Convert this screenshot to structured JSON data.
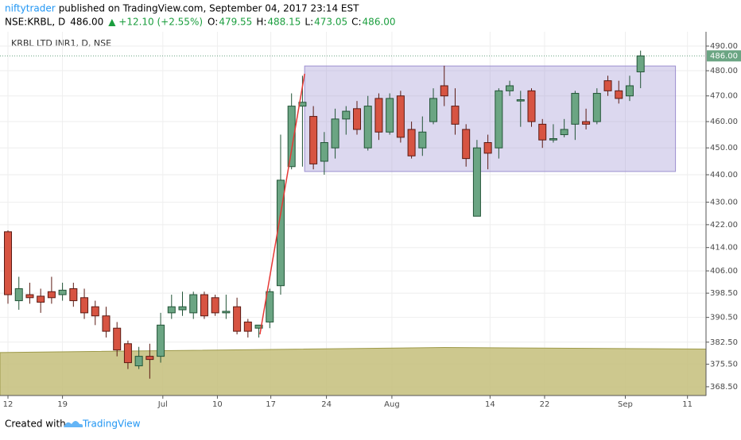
{
  "header": {
    "author": "niftytrader",
    "published": "published on TradingView.com, September 04, 2017 23:14 EST",
    "symbol": "NSE:KRBL, D",
    "last": "486.00",
    "change": "▲ +12.10 (+2.55%)",
    "ohlc": [
      {
        "label": "O:",
        "value": "479.55"
      },
      {
        "label": "H:",
        "value": "488.15"
      },
      {
        "label": "L:",
        "value": "473.05"
      },
      {
        "label": "C:",
        "value": "486.00"
      }
    ]
  },
  "footer": {
    "created": "Created with",
    "brand": "TradingView"
  },
  "chart_data": {
    "type": "candlestick",
    "legend": "KRBL LTD INR1, D, NSE",
    "log_scale": true,
    "grid": true,
    "up_color": "#6ba583",
    "down_color": "#d75442",
    "open": [
      419.5,
      396,
      398,
      397.5,
      399,
      398,
      400,
      397,
      394,
      391,
      387,
      382,
      375,
      378,
      378,
      392,
      393,
      392,
      398,
      397,
      392,
      394,
      389,
      387,
      389,
      401,
      443,
      466,
      462,
      445,
      450,
      461,
      465,
      450,
      469,
      456,
      470,
      457,
      450,
      460,
      474,
      466,
      457,
      425,
      452,
      450,
      472,
      468,
      472,
      459,
      453,
      455,
      459,
      460,
      460,
      476,
      472,
      470,
      479.55
    ],
    "high": [
      420,
      404,
      402,
      400,
      404,
      402,
      402,
      400,
      396,
      394,
      389,
      383,
      381,
      382,
      392,
      398,
      399,
      399,
      399,
      398,
      398,
      397,
      390,
      388,
      400,
      455,
      471,
      478,
      466,
      456,
      465,
      466,
      468,
      470,
      471,
      471,
      472,
      460,
      462,
      473,
      482,
      473,
      459,
      453,
      455,
      473,
      476,
      472,
      473,
      461,
      459,
      461,
      472,
      465,
      473,
      478,
      476,
      478,
      488.15
    ],
    "low": [
      395,
      393,
      395,
      392,
      395,
      396,
      394,
      390,
      388,
      384,
      378,
      374,
      374,
      371,
      376,
      390,
      391,
      390,
      390,
      391,
      390,
      385,
      384,
      384,
      387,
      398,
      442,
      443,
      442,
      440,
      446,
      455,
      455,
      449,
      453,
      455,
      452,
      446,
      447,
      459,
      466,
      455,
      443,
      425,
      442,
      446,
      470,
      458,
      458,
      450,
      452,
      454,
      453,
      457,
      459,
      470,
      467,
      468,
      473.05
    ],
    "close": [
      398,
      400,
      397,
      395.5,
      397,
      399.5,
      396,
      392,
      391,
      386,
      380,
      376,
      378,
      377,
      388,
      394,
      394,
      398,
      391,
      392,
      392.5,
      386,
      386,
      388,
      399,
      438,
      466,
      467.5,
      444,
      452,
      461,
      464,
      457,
      466,
      456,
      469,
      454,
      447,
      456,
      469,
      470,
      459,
      446,
      450,
      448,
      472,
      474,
      468.5,
      460,
      453,
      453.5,
      457,
      471,
      459,
      471,
      472,
      469,
      474,
      486
    ],
    "xlim": [
      -0.73,
      64
    ],
    "xticks": [
      {
        "value": 0,
        "label": "12"
      },
      {
        "value": 5,
        "label": "19"
      },
      {
        "value": 14.2,
        "label": "Jul"
      },
      {
        "value": 19.2,
        "label": "10"
      },
      {
        "value": 24.1,
        "label": "17"
      },
      {
        "value": 29.2,
        "label": "24"
      },
      {
        "value": 35.2,
        "label": "Aug"
      },
      {
        "value": 44.2,
        "label": "14"
      },
      {
        "value": 49.2,
        "label": "22"
      },
      {
        "value": 56.6,
        "label": "Sep"
      },
      {
        "value": 62.3,
        "label": "11"
      }
    ],
    "ylim": [
      365.8,
      495.9
    ],
    "yticks": [
      {
        "value": 368.5,
        "label": "368.50"
      },
      {
        "value": 375.5,
        "label": "375.50"
      },
      {
        "value": 382.5,
        "label": "382.50"
      },
      {
        "value": 390.5,
        "label": "390.50"
      },
      {
        "value": 398.5,
        "label": "398.50"
      },
      {
        "value": 406,
        "label": "406.00"
      },
      {
        "value": 414,
        "label": "414.00"
      },
      {
        "value": 422,
        "label": "422.00"
      },
      {
        "value": 430,
        "label": "430.00"
      },
      {
        "value": 440,
        "label": "440.00"
      },
      {
        "value": 450,
        "label": "450.00"
      },
      {
        "value": 460,
        "label": "460.00"
      },
      {
        "value": 470,
        "label": "470.00"
      },
      {
        "value": 480,
        "label": "480.00"
      },
      {
        "value": 490,
        "label": "490.00"
      }
    ],
    "last_price": {
      "value": 486,
      "label": "486.00",
      "color": "#6ba583"
    },
    "band": {
      "x": [
        -0.73,
        40,
        64
      ],
      "values": [
        379.2,
        380.8,
        380.3
      ],
      "color": "#c4be7a"
    },
    "rectangle": {
      "x": [
        27.2,
        61.2
      ],
      "y": [
        441.2,
        481.9
      ],
      "color": "#9c8fd0"
    },
    "trendline": {
      "x": [
        23.1,
        27.2
      ],
      "y": [
        385,
        478.8
      ],
      "color": "#e53935"
    }
  }
}
